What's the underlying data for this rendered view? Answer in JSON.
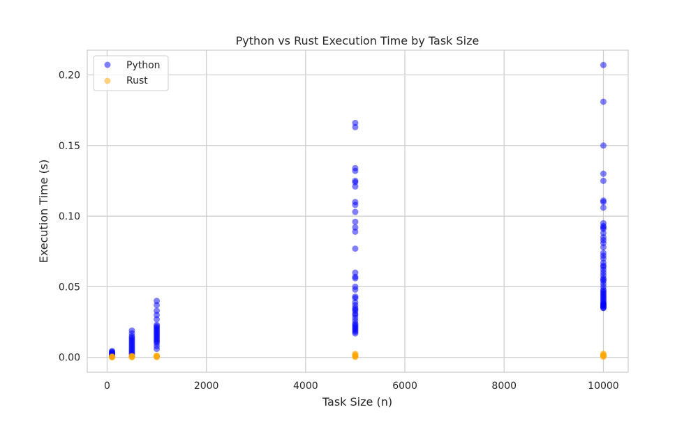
{
  "chart_data": {
    "type": "scatter",
    "title": "Python vs Rust Execution Time by Task Size",
    "xlabel": "Task Size (n)",
    "ylabel": "Execution Time (s)",
    "xlim": [
      -400,
      10500
    ],
    "ylim": [
      -0.0105,
      0.2175
    ],
    "xticks": [
      0,
      2000,
      4000,
      6000,
      8000,
      10000
    ],
    "yticks": [
      0.0,
      0.05,
      0.1,
      0.15,
      0.2
    ],
    "xtick_labels": [
      "0",
      "2000",
      "4000",
      "6000",
      "8000",
      "10000"
    ],
    "ytick_labels": [
      "0.00",
      "0.05",
      "0.10",
      "0.15",
      "0.20"
    ],
    "grid": true,
    "legend_position": "top-left",
    "series": [
      {
        "name": "Python",
        "color": "#0000ff",
        "x": [
          100,
          100,
          100,
          100,
          100,
          100,
          100,
          100,
          500,
          500,
          500,
          500,
          500,
          500,
          500,
          500,
          500,
          500,
          500,
          500,
          500,
          500,
          500,
          500,
          1000,
          1000,
          1000,
          1000,
          1000,
          1000,
          1000,
          1000,
          1000,
          1000,
          1000,
          1000,
          1000,
          1000,
          1000,
          1000,
          1000,
          1000,
          1000,
          1000,
          1000,
          5000,
          5000,
          5000,
          5000,
          5000,
          5000,
          5000,
          5000,
          5000,
          5000,
          5000,
          5000,
          5000,
          5000,
          5000,
          5000,
          5000,
          5000,
          5000,
          5000,
          5000,
          5000,
          5000,
          5000,
          5000,
          5000,
          5000,
          5000,
          5000,
          5000,
          5000,
          5000,
          5000,
          5000,
          5000,
          5000,
          5000,
          5000,
          10000,
          10000,
          10000,
          10000,
          10000,
          10000,
          10000,
          10000,
          10000,
          10000,
          10000,
          10000,
          10000,
          10000,
          10000,
          10000,
          10000,
          10000,
          10000,
          10000,
          10000,
          10000,
          10000,
          10000,
          10000,
          10000,
          10000,
          10000,
          10000,
          10000,
          10000,
          10000,
          10000,
          10000,
          10000,
          10000,
          10000,
          10000,
          10000,
          10000,
          10000,
          10000,
          10000,
          10000,
          10000,
          10000,
          10000,
          10000,
          10000
        ],
        "y": [
          0.0045,
          0.004,
          0.0035,
          0.003,
          0.0025,
          0.002,
          0.0015,
          0.001,
          0.019,
          0.017,
          0.015,
          0.014,
          0.013,
          0.012,
          0.011,
          0.01,
          0.009,
          0.008,
          0.007,
          0.006,
          0.005,
          0.004,
          0.003,
          0.002,
          0.04,
          0.037,
          0.033,
          0.03,
          0.027,
          0.023,
          0.022,
          0.021,
          0.02,
          0.019,
          0.018,
          0.017,
          0.016,
          0.015,
          0.014,
          0.013,
          0.012,
          0.011,
          0.01,
          0.008,
          0.006,
          0.166,
          0.163,
          0.134,
          0.132,
          0.125,
          0.124,
          0.121,
          0.11,
          0.108,
          0.103,
          0.096,
          0.092,
          0.089,
          0.077,
          0.06,
          0.057,
          0.056,
          0.05,
          0.048,
          0.043,
          0.042,
          0.039,
          0.037,
          0.035,
          0.034,
          0.033,
          0.031,
          0.03,
          0.028,
          0.026,
          0.024,
          0.023,
          0.022,
          0.021,
          0.02,
          0.019,
          0.018,
          0.017,
          0.207,
          0.181,
          0.15,
          0.13,
          0.125,
          0.111,
          0.11,
          0.106,
          0.095,
          0.093,
          0.092,
          0.091,
          0.088,
          0.085,
          0.083,
          0.081,
          0.078,
          0.074,
          0.072,
          0.07,
          0.067,
          0.065,
          0.064,
          0.062,
          0.06,
          0.058,
          0.056,
          0.055,
          0.054,
          0.052,
          0.05,
          0.048,
          0.047,
          0.046,
          0.045,
          0.044,
          0.043,
          0.042,
          0.041,
          0.04,
          0.039,
          0.038,
          0.037,
          0.036,
          0.035,
          0.035,
          0.036,
          0.037,
          0.038
        ]
      },
      {
        "name": "Rust",
        "color": "#ffa500",
        "x": [
          100,
          100,
          100,
          100,
          100,
          500,
          500,
          500,
          500,
          500,
          1000,
          1000,
          1000,
          1000,
          1000,
          5000,
          5000,
          5000,
          5000,
          5000,
          5000,
          10000,
          10000,
          10000,
          10000,
          10000,
          10000
        ],
        "y": [
          0.0001,
          0.0002,
          0.0003,
          0.0004,
          0.0006,
          0.0001,
          0.0003,
          0.0005,
          0.0008,
          0.001,
          0.0002,
          0.0004,
          0.0007,
          0.001,
          0.0013,
          0.0003,
          0.0006,
          0.001,
          0.0015,
          0.002,
          0.0025,
          0.0004,
          0.0008,
          0.0012,
          0.0016,
          0.0021,
          0.0026
        ]
      }
    ]
  }
}
